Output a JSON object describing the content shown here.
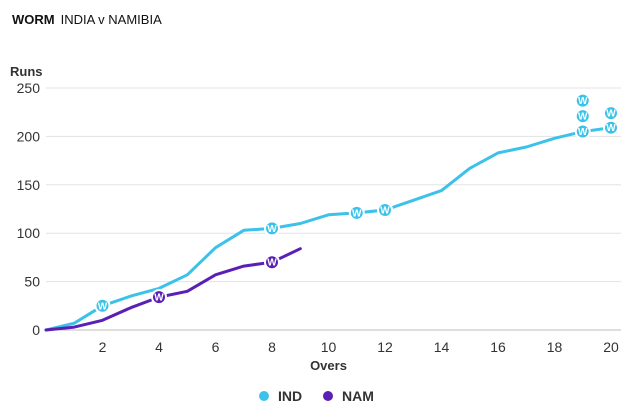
{
  "header": {
    "label": "WORM",
    "match": "INDIA v NAMIBIA"
  },
  "chart_data": {
    "type": "line",
    "title": "WORM",
    "subtitle": "INDIA v NAMIBIA",
    "xlabel": "Overs",
    "ylabel": "Runs",
    "xlim": [
      0,
      20
    ],
    "ylim": [
      0,
      250
    ],
    "xticks": [
      2,
      4,
      6,
      8,
      10,
      12,
      14,
      16,
      18,
      20
    ],
    "yticks": [
      0,
      50,
      100,
      150,
      200,
      250
    ],
    "wicket_marker": "W",
    "legend_position": "bottom",
    "series": [
      {
        "name": "IND",
        "color": "#3cc2ea",
        "x": [
          0,
          1,
          2,
          3,
          4,
          5,
          6,
          7,
          8,
          9,
          10,
          11,
          12,
          13,
          14,
          15,
          16,
          17,
          18,
          19,
          20
        ],
        "y": [
          0,
          7,
          25,
          35,
          43,
          57,
          85,
          103,
          105,
          110,
          119,
          121,
          124,
          134,
          144,
          167,
          183,
          189,
          198,
          205,
          209
        ],
        "wickets": [
          [
            2,
            25
          ],
          [
            8,
            105
          ],
          [
            11,
            121
          ],
          [
            12,
            124
          ],
          [
            19,
            205
          ],
          [
            19,
            221
          ],
          [
            19,
            237
          ],
          [
            20,
            209
          ],
          [
            20,
            224
          ]
        ]
      },
      {
        "name": "NAM",
        "color": "#5a1fb5",
        "x": [
          0,
          1,
          2,
          3,
          4,
          5,
          6,
          7,
          8,
          9
        ],
        "y": [
          0,
          3,
          10,
          23,
          34,
          40,
          57,
          66,
          70,
          84
        ],
        "wickets": [
          [
            4,
            34
          ],
          [
            8,
            70
          ]
        ]
      }
    ]
  }
}
